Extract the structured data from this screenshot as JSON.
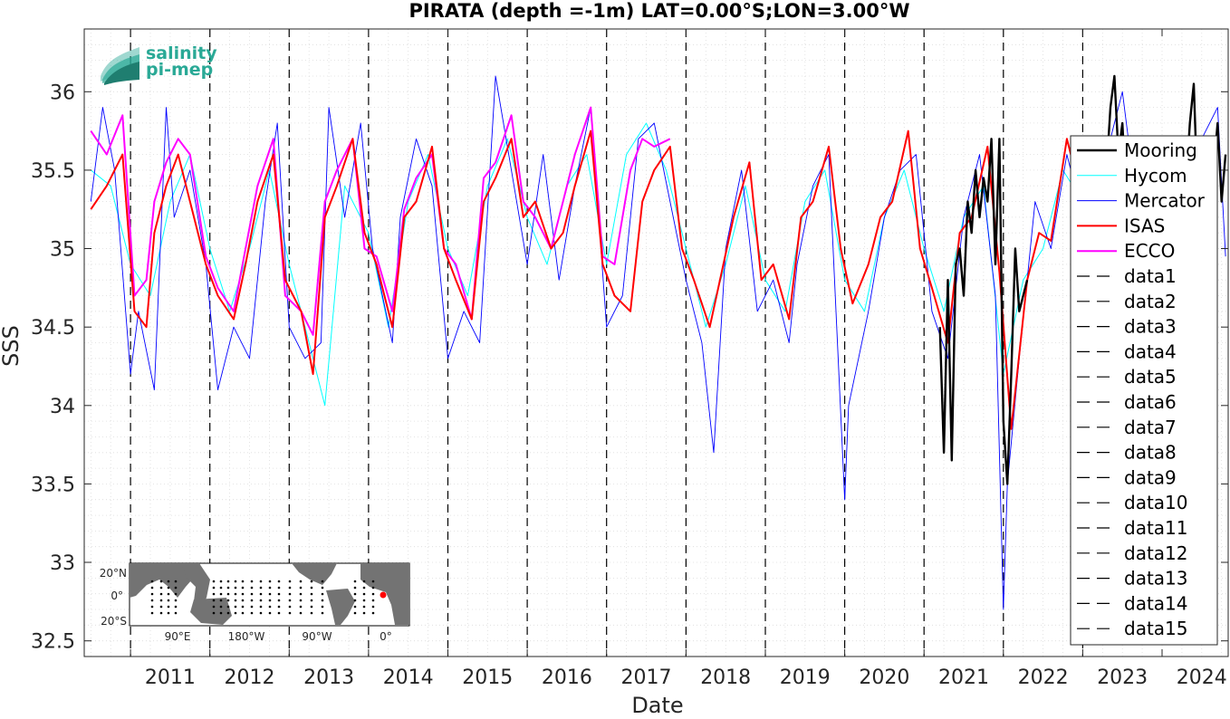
{
  "chart_data": {
    "type": "line",
    "title": "PIRATA (depth =-1m) LAT=0.00°S;LON=3.00°W",
    "xlabel": "Date",
    "ylabel": "SSS",
    "xlim": [
      "2010-06-01",
      "2024-11-01"
    ],
    "ylim": [
      32.4,
      36.4
    ],
    "x_ticks": [
      "2011",
      "2012",
      "2013",
      "2014",
      "2015",
      "2016",
      "2017",
      "2018",
      "2019",
      "2020",
      "2021",
      "2022",
      "2023",
      "2024"
    ],
    "y_ticks": [
      32.5,
      33,
      33.5,
      34,
      34.5,
      35,
      35.5,
      36
    ],
    "y_tick_labels": [
      "32.5",
      "33",
      "33.5",
      "34",
      "34.5",
      "35",
      "35.5",
      "36"
    ],
    "grid": true,
    "legend_position": "right",
    "legend": [
      "Mooring",
      "Hycom",
      "Mercator",
      "ISAS",
      "ECCO",
      "data1",
      "data2",
      "data3",
      "data4",
      "data5",
      "data6",
      "data7",
      "data8",
      "data9",
      "data10",
      "data11",
      "data12",
      "data13",
      "data14",
      "data15"
    ],
    "colors": {
      "Mooring": "#000000",
      "Hycom": "#00ffff",
      "Mercator": "#0000ff",
      "ISAS": "#ff0000",
      "ECCO": "#ff00ff",
      "vlines": "#000000"
    },
    "vertical_lines": [
      "2011-01-01",
      "2012-01-01",
      "2013-01-01",
      "2014-01-01",
      "2015-01-01",
      "2016-01-01",
      "2017-01-01",
      "2018-01-01",
      "2019-01-01",
      "2020-01-01",
      "2021-01-01",
      "2022-01-01",
      "2023-01-01"
    ],
    "series": [
      {
        "name": "ISAS",
        "x": [
          2010.5,
          2010.7,
          2010.9,
          2011.05,
          2011.2,
          2011.3,
          2011.45,
          2011.6,
          2011.75,
          2011.95,
          2012.1,
          2012.3,
          2012.45,
          2012.6,
          2012.8,
          2012.95,
          2013.15,
          2013.3,
          2013.45,
          2013.6,
          2013.8,
          2013.95,
          2014.1,
          2014.3,
          2014.45,
          2014.6,
          2014.8,
          2014.95,
          2015.1,
          2015.3,
          2015.45,
          2015.6,
          2015.8,
          2015.95,
          2016.1,
          2016.3,
          2016.45,
          2016.6,
          2016.8,
          2016.95,
          2017.1,
          2017.3,
          2017.45,
          2017.6,
          2017.8,
          2017.95,
          2018.1,
          2018.3,
          2018.45,
          2018.6,
          2018.8,
          2018.95,
          2019.1,
          2019.3,
          2019.45,
          2019.6,
          2019.8,
          2019.95,
          2020.1,
          2020.3,
          2020.45,
          2020.6,
          2020.8,
          2020.95,
          2021.1,
          2021.3,
          2021.45,
          2021.6,
          2021.8,
          2021.95,
          2022.1,
          2022.3,
          2022.45,
          2022.6,
          2022.8,
          2022.95
        ],
        "y": [
          35.25,
          35.4,
          35.6,
          34.6,
          34.5,
          35.1,
          35.4,
          35.6,
          35.3,
          34.9,
          34.7,
          34.55,
          34.9,
          35.3,
          35.6,
          34.8,
          34.6,
          34.2,
          35.2,
          35.4,
          35.7,
          35.1,
          34.9,
          34.5,
          35.2,
          35.3,
          35.65,
          35.0,
          34.8,
          34.55,
          35.3,
          35.45,
          35.7,
          35.2,
          35.3,
          35.0,
          35.1,
          35.4,
          35.75,
          34.9,
          34.7,
          34.6,
          35.3,
          35.5,
          35.65,
          35.0,
          34.8,
          34.5,
          34.85,
          35.2,
          35.55,
          34.8,
          34.9,
          34.55,
          35.2,
          35.3,
          35.65,
          35.0,
          34.65,
          34.9,
          35.2,
          35.3,
          35.75,
          35.0,
          34.75,
          34.4,
          35.1,
          35.2,
          35.65,
          34.85,
          33.85,
          34.8,
          35.1,
          35.05,
          35.7,
          35.4
        ]
      },
      {
        "name": "ECCO",
        "x": [
          2010.5,
          2010.7,
          2010.9,
          2011.05,
          2011.2,
          2011.3,
          2011.45,
          2011.6,
          2011.75,
          2011.95,
          2012.1,
          2012.3,
          2012.45,
          2012.6,
          2012.8,
          2012.95,
          2013.15,
          2013.3,
          2013.45,
          2013.6,
          2013.8,
          2013.95,
          2014.1,
          2014.3,
          2014.45,
          2014.6,
          2014.8,
          2014.95,
          2015.1,
          2015.3,
          2015.45,
          2015.6,
          2015.8,
          2015.95,
          2016.1,
          2016.3,
          2016.45,
          2016.6,
          2016.8,
          2016.95,
          2017.1,
          2017.3,
          2017.45,
          2017.6,
          2017.8
        ],
        "y": [
          35.75,
          35.6,
          35.85,
          34.7,
          34.8,
          35.3,
          35.55,
          35.7,
          35.6,
          34.95,
          34.75,
          34.6,
          35.0,
          35.4,
          35.7,
          34.7,
          34.6,
          34.45,
          35.3,
          35.5,
          35.7,
          35.0,
          34.95,
          34.6,
          35.25,
          35.45,
          35.6,
          35.0,
          34.9,
          34.55,
          35.45,
          35.55,
          35.85,
          35.3,
          35.2,
          35.0,
          35.3,
          35.6,
          35.9,
          34.95,
          34.9,
          35.5,
          35.7,
          35.65,
          35.7
        ]
      },
      {
        "name": "Hycom",
        "x": [
          2010.5,
          2010.75,
          2011.0,
          2011.25,
          2011.5,
          2011.75,
          2012.0,
          2012.25,
          2012.5,
          2012.75,
          2013.0,
          2013.25,
          2013.45,
          2013.7,
          2014.0,
          2014.25,
          2014.5,
          2014.75,
          2015.0,
          2015.25,
          2015.5,
          2015.75,
          2016.0,
          2016.25,
          2016.5,
          2016.75,
          2017.0,
          2017.25,
          2017.5,
          2017.75,
          2018.0,
          2018.25,
          2018.5,
          2018.75,
          2019.0,
          2019.25,
          2019.5,
          2019.75,
          2020.0,
          2020.25,
          2020.5,
          2020.75,
          2021.0,
          2021.25,
          2021.5,
          2021.75,
          2022.0,
          2022.25,
          2022.5,
          2022.75,
          2023.0
        ],
        "y": [
          35.5,
          35.4,
          34.9,
          34.7,
          35.3,
          35.6,
          35.0,
          34.6,
          35.0,
          35.5,
          34.9,
          34.4,
          34.0,
          35.4,
          35.1,
          34.5,
          35.3,
          35.6,
          35.0,
          34.7,
          35.4,
          35.7,
          35.2,
          34.9,
          35.4,
          35.6,
          34.9,
          35.6,
          35.8,
          35.5,
          35.0,
          34.5,
          34.9,
          35.4,
          34.8,
          34.6,
          35.3,
          35.5,
          34.8,
          34.6,
          35.2,
          35.5,
          35.0,
          34.6,
          35.2,
          35.4,
          34.2,
          34.8,
          35.0,
          35.5,
          35.3
        ]
      },
      {
        "name": "Mercator",
        "x": [
          2010.5,
          2010.65,
          2010.8,
          2011.0,
          2011.1,
          2011.3,
          2011.45,
          2011.55,
          2011.75,
          2011.95,
          2012.1,
          2012.3,
          2012.5,
          2012.7,
          2012.85,
          2013.0,
          2013.2,
          2013.4,
          2013.5,
          2013.7,
          2013.9,
          2014.05,
          2014.3,
          2014.4,
          2014.6,
          2014.8,
          2015.0,
          2015.2,
          2015.4,
          2015.6,
          2015.8,
          2016.0,
          2016.2,
          2016.4,
          2016.6,
          2016.8,
          2017.0,
          2017.2,
          2017.4,
          2017.6,
          2017.8,
          2018.0,
          2018.2,
          2018.35,
          2018.5,
          2018.7,
          2018.9,
          2019.1,
          2019.3,
          2019.4,
          2019.6,
          2019.8,
          2020.0,
          2020.05,
          2020.3,
          2020.5,
          2020.7,
          2020.9,
          2021.1,
          2021.3,
          2021.5,
          2021.7,
          2021.9,
          2022.0,
          2022.05,
          2022.2,
          2022.4,
          2022.6,
          2022.8,
          2023.0,
          2023.2,
          2023.4,
          2023.5,
          2023.7,
          2023.9,
          2024.1,
          2024.3,
          2024.5,
          2024.7,
          2024.8
        ],
        "y": [
          35.3,
          35.9,
          35.5,
          34.2,
          34.6,
          34.1,
          35.9,
          35.2,
          35.5,
          34.9,
          34.1,
          34.5,
          34.3,
          35.3,
          35.8,
          34.5,
          34.3,
          34.4,
          35.9,
          35.2,
          35.8,
          35.0,
          34.4,
          35.2,
          35.7,
          35.4,
          34.3,
          34.6,
          34.4,
          36.1,
          35.5,
          34.9,
          35.6,
          34.8,
          35.4,
          35.9,
          34.5,
          34.7,
          35.7,
          35.8,
          35.3,
          34.8,
          34.4,
          33.7,
          35.0,
          35.5,
          34.6,
          34.8,
          34.4,
          34.9,
          35.4,
          35.6,
          33.4,
          34.0,
          34.6,
          35.2,
          35.5,
          35.6,
          34.6,
          34.3,
          35.2,
          35.6,
          34.7,
          32.7,
          33.5,
          34.3,
          35.3,
          35.0,
          35.6,
          35.2,
          35.4,
          35.8,
          36.0,
          35.2,
          35.4,
          35.3,
          35.6,
          35.7,
          35.9,
          34.95
        ]
      },
      {
        "name": "Mooring",
        "x": [
          2021.2,
          2021.25,
          2021.3,
          2021.35,
          2021.4,
          2021.45,
          2021.5,
          2021.55,
          2021.6,
          2021.65,
          2021.7,
          2021.75,
          2021.8,
          2021.85,
          2021.9,
          2021.95,
          2022.0,
          2022.05,
          2022.1,
          2022.15,
          2022.2,
          2022.3
        ],
        "y": [
          34.5,
          33.7,
          34.8,
          33.65,
          34.9,
          35.0,
          34.7,
          35.3,
          35.1,
          35.5,
          35.2,
          35.45,
          35.3,
          35.7,
          34.9,
          35.7,
          33.9,
          33.5,
          34.2,
          35.0,
          34.6,
          34.8
        ]
      },
      {
        "name": "Mooring",
        "x": [
          2023.3,
          2023.35,
          2023.4,
          2023.45,
          2023.5,
          2023.55,
          2023.6,
          2024.3,
          2024.35,
          2024.4,
          2024.45,
          2024.5,
          2024.55,
          2024.6,
          2024.65,
          2024.7,
          2024.75,
          2024.8
        ],
        "y": [
          35.5,
          35.9,
          36.1,
          35.6,
          35.8,
          35.3,
          35.6,
          35.4,
          35.8,
          36.05,
          35.3,
          35.7,
          35.2,
          35.6,
          35.5,
          35.8,
          35.3,
          35.6
        ]
      }
    ]
  },
  "logo": {
    "line1": "salinity",
    "line2": "pi-mep",
    "color": "#2aa996"
  },
  "inset_map": {
    "lat_labels": [
      "20°N",
      "0°",
      "20°S"
    ],
    "lon_labels": [
      "90°E",
      "180°W",
      "90°W",
      "0°"
    ],
    "marker_color": "#ff0000",
    "land_color": "#737373",
    "ocean_color": "#ffffff"
  }
}
